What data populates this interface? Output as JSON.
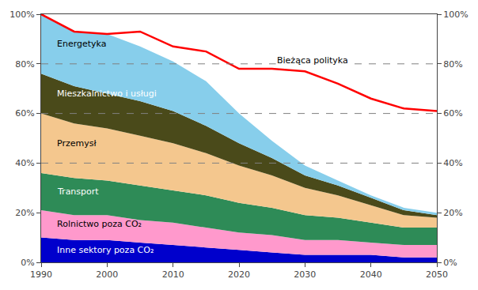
{
  "chart_data": {
    "type": "area",
    "stacked": true,
    "grid": false,
    "x": [
      1990,
      1995,
      2000,
      2005,
      2010,
      2015,
      2020,
      2025,
      2030,
      2035,
      2040,
      2045,
      2050
    ],
    "xlim": [
      1990,
      2050
    ],
    "xticks": [
      1990,
      2000,
      2010,
      2020,
      2030,
      2040,
      2050
    ],
    "ylim": [
      0,
      100
    ],
    "yticks": [
      {
        "value": 0,
        "label": "0%"
      },
      {
        "value": 20,
        "label": "20%"
      },
      {
        "value": 40,
        "label": "40%"
      },
      {
        "value": 60,
        "label": "60%"
      },
      {
        "value": 80,
        "label": "80%"
      },
      {
        "value": 100,
        "label": "100%"
      }
    ],
    "y2lim": [
      0,
      100
    ],
    "y2ticks": [
      {
        "value": 0,
        "label": "0%"
      },
      {
        "value": 20,
        "label": "20%"
      },
      {
        "value": 40,
        "label": "40%"
      },
      {
        "value": 60,
        "label": "60%"
      },
      {
        "value": 80,
        "label": "80%"
      },
      {
        "value": 100,
        "label": "100%"
      }
    ],
    "hlines": [
      80,
      60,
      40
    ],
    "series": [
      {
        "name": "Inne sektory poza CO₂",
        "color": "#0000cc",
        "values": [
          10,
          9,
          9,
          8,
          7,
          6,
          5,
          4,
          3,
          3,
          3,
          2,
          2
        ]
      },
      {
        "name": "Rolnictwo poza CO₂",
        "color": "#ff99cc",
        "values": [
          11,
          10,
          10,
          9,
          9,
          8,
          7,
          7,
          6,
          6,
          5,
          5,
          5
        ]
      },
      {
        "name": "Transport",
        "color": "#2e8b57",
        "values": [
          15,
          15,
          14,
          14,
          13,
          13,
          12,
          11,
          10,
          9,
          8,
          7,
          7
        ]
      },
      {
        "name": "Przemysł",
        "color": "#f4c78e",
        "values": [
          24,
          22,
          21,
          20,
          19,
          17,
          15,
          13,
          11,
          9,
          7,
          5,
          4
        ]
      },
      {
        "name": "Mieszkalnictwo i usługi",
        "color": "#4a4a1a",
        "values": [
          16,
          15,
          14,
          14,
          13,
          11,
          9,
          7,
          5,
          4,
          3,
          2,
          1
        ]
      },
      {
        "name": "Energetyka",
        "color": "#87ceeb",
        "values": [
          24,
          22,
          24,
          22,
          20,
          18,
          12,
          7,
          4,
          2,
          1,
          1,
          1
        ]
      },
      {
        "name": "Bieżąca polityka",
        "type": "line",
        "color": "red",
        "values": [
          100,
          93,
          92,
          93,
          87,
          85,
          78,
          78,
          77,
          72,
          66,
          62,
          61
        ]
      }
    ]
  }
}
